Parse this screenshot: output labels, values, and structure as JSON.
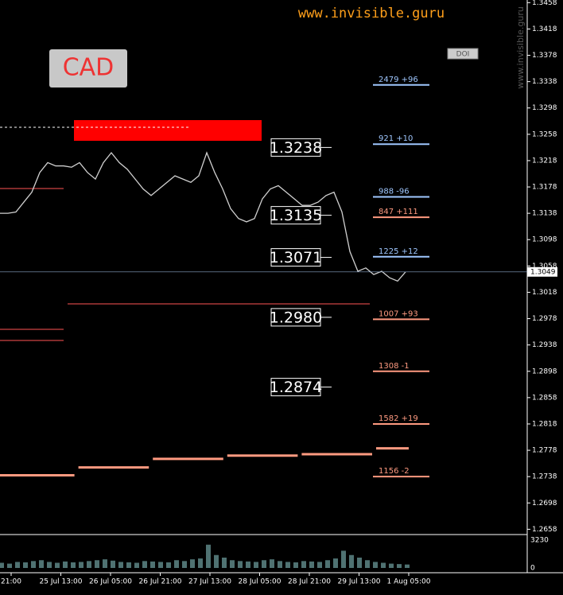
{
  "chart_data": {
    "type": "line",
    "title": "CAD",
    "watermark": "www.invisible.guru",
    "button": "DOI",
    "side_text": "www.invisible.guru",
    "ylim": [
      1.265,
      1.3462
    ],
    "yticks": [
      1.3458,
      1.3418,
      1.3378,
      1.3338,
      1.3298,
      1.3258,
      1.3218,
      1.3178,
      1.3138,
      1.3098,
      1.3058,
      1.3018,
      1.2978,
      1.2938,
      1.2898,
      1.2858,
      1.2818,
      1.2778,
      1.2738,
      1.2698,
      1.2658
    ],
    "x_labels": [
      "21:00",
      "25 Jul 13:00",
      "26 Jul 05:00",
      "26 Jul 21:00",
      "27 Jul 13:00",
      "28 Jul 05:00",
      "28 Jul 21:00",
      "29 Jul 13:00",
      "1 Aug 05:00"
    ],
    "price": {
      "color": "#d0d0d0",
      "values": [
        1.3138,
        1.3138,
        1.314,
        1.3155,
        1.317,
        1.32,
        1.3215,
        1.321,
        1.321,
        1.3208,
        1.3215,
        1.32,
        1.319,
        1.3215,
        1.323,
        1.3215,
        1.3205,
        1.319,
        1.3175,
        1.3165,
        1.3175,
        1.3185,
        1.3195,
        1.319,
        1.3185,
        1.3195,
        1.323,
        1.32,
        1.3175,
        1.3145,
        1.313,
        1.3125,
        1.313,
        1.316,
        1.3175,
        1.318,
        1.317,
        1.316,
        1.315,
        1.315,
        1.3155,
        1.3165,
        1.317,
        1.314,
        1.308,
        1.305,
        1.3055,
        1.3045,
        1.305,
        1.304,
        1.3035,
        1.3049
      ]
    },
    "current_price": 1.3049,
    "volume": {
      "color": "#4f7272",
      "ylim": [
        0,
        3230
      ],
      "yticks": [
        3230,
        0
      ],
      "values": [
        600,
        500,
        700,
        650,
        800,
        900,
        700,
        600,
        750,
        650,
        700,
        800,
        900,
        1000,
        850,
        700,
        650,
        600,
        800,
        750,
        700,
        650,
        900,
        800,
        1000,
        1100,
        2700,
        1500,
        1200,
        900,
        800,
        750,
        700,
        900,
        1000,
        800,
        700,
        650,
        800,
        750,
        700,
        900,
        1100,
        2000,
        1500,
        1200,
        900,
        700,
        600,
        500,
        450,
        400
      ]
    },
    "levels": [
      1.3238,
      1.3135,
      1.3071,
      {
        "value": 1.298,
        "label": "1.2980"
      },
      1.2874
    ],
    "orders": [
      {
        "label": "2479 +96",
        "price": 1.3333,
        "color": "#9fc7ff"
      },
      {
        "label": "921 +10",
        "price": 1.3243,
        "color": "#9fc7ff"
      },
      {
        "label": "988 -96",
        "price": 1.3163,
        "color": "#9fc7ff"
      },
      {
        "label": "847 +111",
        "price": 1.3132,
        "color": "#ff9a80"
      },
      {
        "label": "1225 +12",
        "price": 1.3072,
        "color": "#9fc7ff"
      },
      {
        "label": "1007 +93",
        "price": 1.2977,
        "color": "#ff9a80"
      },
      {
        "label": "1308 -1",
        "price": 1.2898,
        "color": "#ff9a80"
      },
      {
        "label": "1582 +19",
        "price": 1.2818,
        "color": "#ff9a80"
      },
      {
        "label": "1156 -2",
        "price": 1.2738,
        "color": "#ff9a80"
      }
    ],
    "step_line": {
      "color": "#ff9a80",
      "values": [
        1.274,
        1.2752,
        1.2765,
        1.277,
        1.2772,
        1.2781
      ]
    }
  }
}
